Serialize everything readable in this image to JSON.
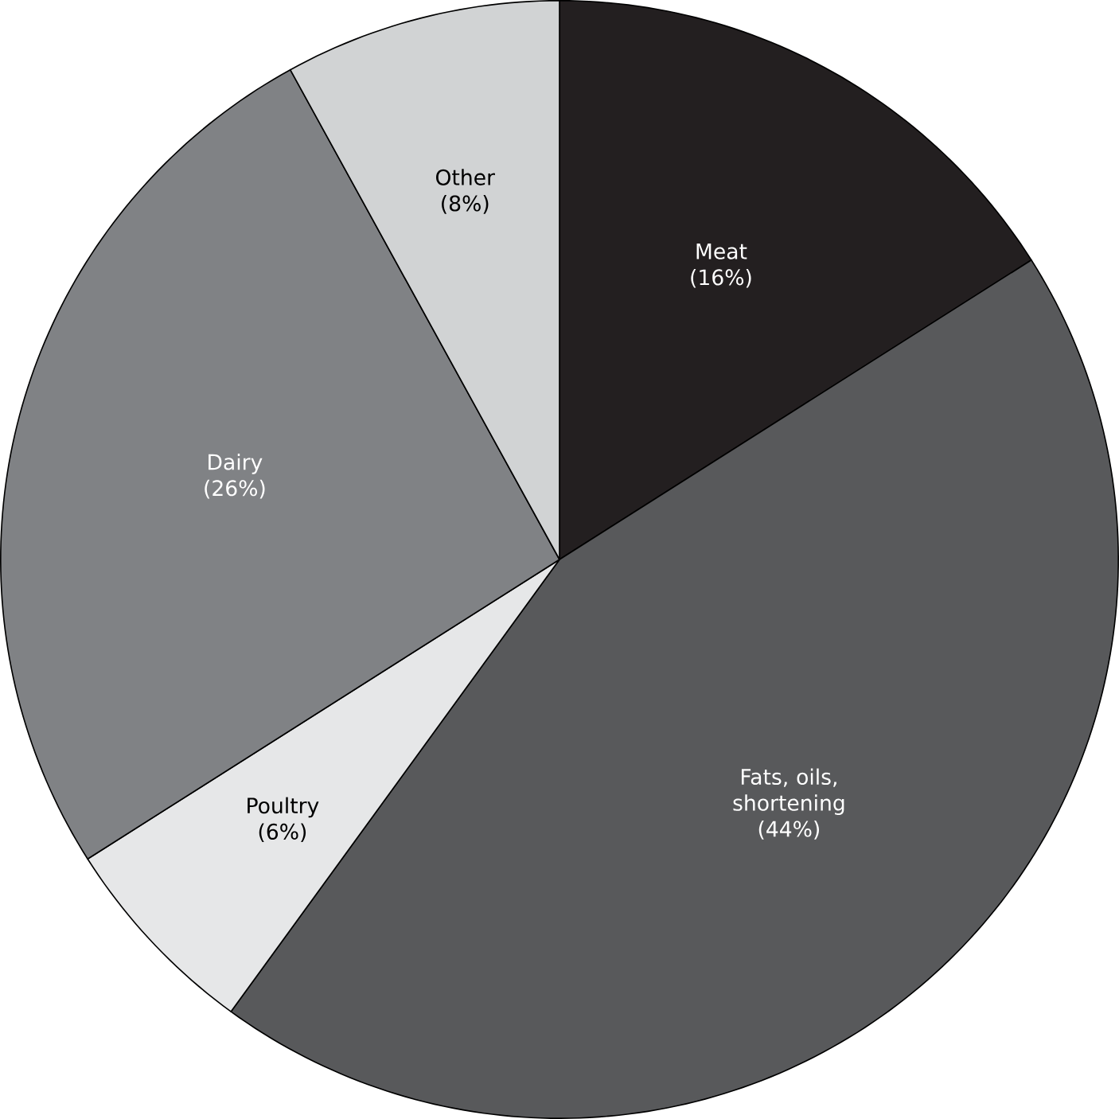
{
  "chart_data": {
    "type": "pie",
    "categories": [
      "Meat",
      "Fats, oils, shortening",
      "Poultry",
      "Dairy",
      "Other"
    ],
    "values": [
      16,
      44,
      6,
      26,
      8
    ],
    "value_labels": [
      "(16%)",
      "(44%)",
      "(6%)",
      "(26%)",
      "(8%)"
    ],
    "colors": [
      "#231f20",
      "#58595b",
      "#e6e7e8",
      "#808285",
      "#d1d3d4"
    ],
    "legend": false
  }
}
